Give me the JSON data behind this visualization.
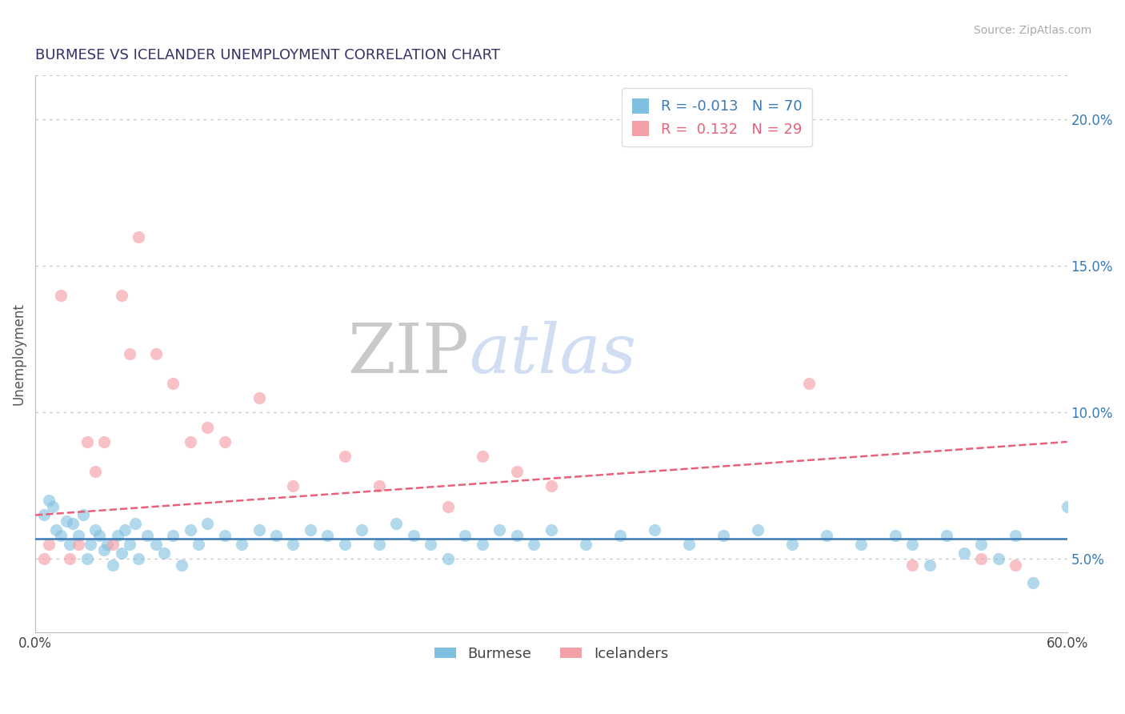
{
  "title": "BURMESE VS ICELANDER UNEMPLOYMENT CORRELATION CHART",
  "source_text": "Source: ZipAtlas.com",
  "ylabel": "Unemployment",
  "right_yticks": [
    "5.0%",
    "10.0%",
    "15.0%",
    "20.0%"
  ],
  "right_ytick_vals": [
    0.05,
    0.1,
    0.15,
    0.2
  ],
  "xlim": [
    0.0,
    0.6
  ],
  "ylim": [
    0.025,
    0.215
  ],
  "legend_burmese_R": "-0.013",
  "legend_burmese_N": "70",
  "legend_icelander_R": "0.132",
  "legend_icelander_N": "29",
  "color_burmese": "#7fbfdf",
  "color_icelander": "#f4a0a8",
  "color_burmese_line": "#3a7ab5",
  "color_icelander_line": "#e8607a",
  "watermark_zip": "ZIP",
  "watermark_atlas": "atlas",
  "burmese_x": [
    0.005,
    0.008,
    0.01,
    0.012,
    0.015,
    0.018,
    0.02,
    0.022,
    0.025,
    0.028,
    0.03,
    0.032,
    0.035,
    0.037,
    0.04,
    0.042,
    0.045,
    0.048,
    0.05,
    0.052,
    0.055,
    0.058,
    0.06,
    0.065,
    0.07,
    0.075,
    0.08,
    0.085,
    0.09,
    0.095,
    0.1,
    0.11,
    0.12,
    0.13,
    0.14,
    0.15,
    0.16,
    0.17,
    0.18,
    0.19,
    0.2,
    0.21,
    0.22,
    0.23,
    0.24,
    0.25,
    0.26,
    0.27,
    0.28,
    0.29,
    0.3,
    0.32,
    0.34,
    0.36,
    0.38,
    0.4,
    0.42,
    0.44,
    0.46,
    0.48,
    0.5,
    0.51,
    0.52,
    0.53,
    0.54,
    0.55,
    0.56,
    0.57,
    0.58,
    0.6
  ],
  "burmese_y": [
    0.065,
    0.07,
    0.068,
    0.06,
    0.058,
    0.063,
    0.055,
    0.062,
    0.058,
    0.065,
    0.05,
    0.055,
    0.06,
    0.058,
    0.053,
    0.055,
    0.048,
    0.058,
    0.052,
    0.06,
    0.055,
    0.062,
    0.05,
    0.058,
    0.055,
    0.052,
    0.058,
    0.048,
    0.06,
    0.055,
    0.062,
    0.058,
    0.055,
    0.06,
    0.058,
    0.055,
    0.06,
    0.058,
    0.055,
    0.06,
    0.055,
    0.062,
    0.058,
    0.055,
    0.05,
    0.058,
    0.055,
    0.06,
    0.058,
    0.055,
    0.06,
    0.055,
    0.058,
    0.06,
    0.055,
    0.058,
    0.06,
    0.055,
    0.058,
    0.055,
    0.058,
    0.055,
    0.048,
    0.058,
    0.052,
    0.055,
    0.05,
    0.058,
    0.042,
    0.068
  ],
  "icelander_x": [
    0.005,
    0.008,
    0.015,
    0.02,
    0.025,
    0.03,
    0.035,
    0.04,
    0.045,
    0.05,
    0.055,
    0.06,
    0.07,
    0.08,
    0.09,
    0.1,
    0.11,
    0.13,
    0.15,
    0.18,
    0.2,
    0.24,
    0.26,
    0.28,
    0.3,
    0.45,
    0.51,
    0.55,
    0.57
  ],
  "icelander_y": [
    0.05,
    0.055,
    0.14,
    0.05,
    0.055,
    0.09,
    0.08,
    0.09,
    0.055,
    0.14,
    0.12,
    0.16,
    0.12,
    0.11,
    0.09,
    0.095,
    0.09,
    0.105,
    0.075,
    0.085,
    0.075,
    0.068,
    0.085,
    0.08,
    0.075,
    0.11,
    0.048,
    0.05,
    0.048
  ]
}
